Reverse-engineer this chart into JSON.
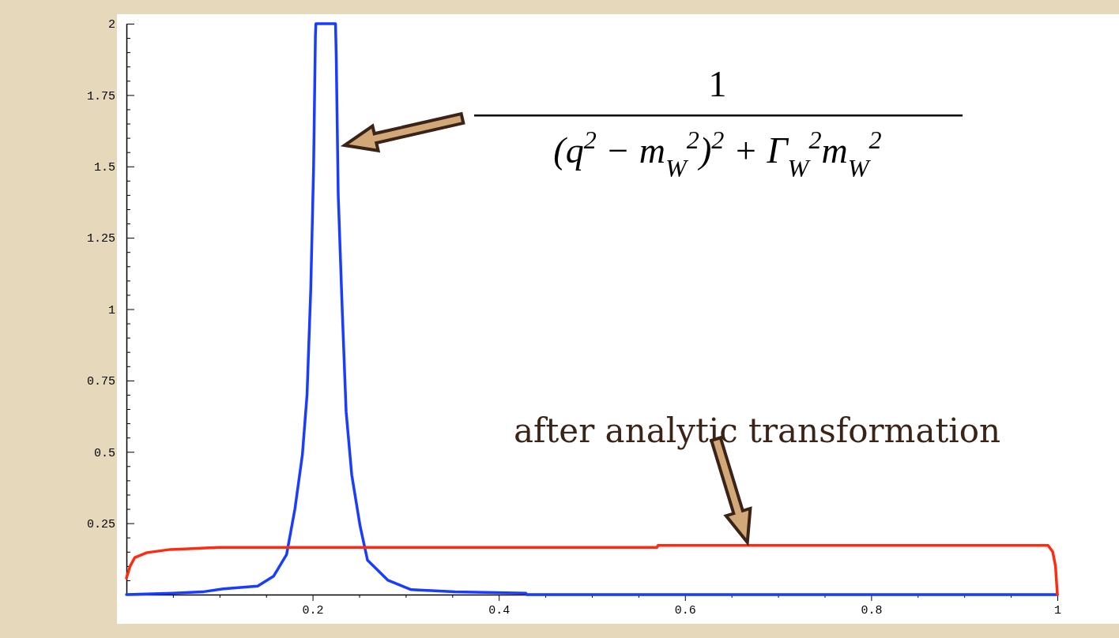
{
  "chart_data": {
    "type": "line",
    "xlim": [
      0,
      1
    ],
    "ylim": [
      0,
      2
    ],
    "xticks": [
      {
        "value": 0.05,
        "label": null
      },
      {
        "value": 0.1,
        "label": null
      },
      {
        "value": 0.15,
        "label": null
      },
      0.2,
      {
        "value": 0.25,
        "label": null
      },
      {
        "value": 0.3,
        "label": null
      },
      {
        "value": 0.35,
        "label": null
      },
      0.4,
      {
        "value": 0.45,
        "label": null
      },
      {
        "value": 0.5,
        "label": null
      },
      {
        "value": 0.55,
        "label": null
      },
      0.6,
      {
        "value": 0.65,
        "label": null
      },
      {
        "value": 0.7,
        "label": null
      },
      {
        "value": 0.75,
        "label": null
      },
      0.8,
      {
        "value": 0.85,
        "label": null
      },
      {
        "value": 0.9,
        "label": null
      },
      {
        "value": 0.95,
        "label": null
      },
      1
    ],
    "yticks": [
      {
        "value": 0.05,
        "label": null
      },
      {
        "value": 0.1,
        "label": null
      },
      {
        "value": 0.15,
        "label": null
      },
      {
        "value": 0.2,
        "label": null
      },
      0.25,
      {
        "value": 0.3,
        "label": null
      },
      {
        "value": 0.35,
        "label": null
      },
      {
        "value": 0.4,
        "label": null
      },
      {
        "value": 0.45,
        "label": null
      },
      0.5,
      {
        "value": 0.55,
        "label": null
      },
      {
        "value": 0.6,
        "label": null
      },
      {
        "value": 0.65,
        "label": null
      },
      {
        "value": 0.7,
        "label": null
      },
      0.75,
      {
        "value": 0.8,
        "label": null
      },
      {
        "value": 0.85,
        "label": null
      },
      {
        "value": 0.9,
        "label": null
      },
      {
        "value": 0.95,
        "label": null
      },
      1,
      {
        "value": 1.05,
        "label": null
      },
      {
        "value": 1.1,
        "label": null
      },
      {
        "value": 1.15,
        "label": null
      },
      {
        "value": 1.2,
        "label": null
      },
      1.25,
      {
        "value": 1.3,
        "label": null
      },
      {
        "value": 1.35,
        "label": null
      },
      {
        "value": 1.4,
        "label": null
      },
      {
        "value": 1.45,
        "label": null
      },
      1.5,
      {
        "value": 1.55,
        "label": null
      },
      {
        "value": 1.6,
        "label": null
      },
      {
        "value": 1.65,
        "label": null
      },
      {
        "value": 1.7,
        "label": null
      },
      1.75,
      {
        "value": 1.8,
        "label": null
      },
      {
        "value": 1.85,
        "label": null
      },
      {
        "value": 1.9,
        "label": null
      },
      {
        "value": 1.95,
        "label": null
      },
      2
    ],
    "grid": false,
    "line_style": "solid",
    "marker": "none",
    "series": [
      {
        "color": "#1a3cff",
        "x": [
          0,
          0.05,
          0.083,
          0.104,
          0.141,
          0.158,
          0.172,
          0.181,
          0.189,
          0.194,
          0.198,
          0.201,
          0.203,
          0.2035,
          0.2246,
          0.2254,
          0.2275,
          0.232,
          0.236,
          0.242,
          0.251,
          0.259,
          0.281,
          0.306,
          0.353,
          0.429,
          0.43,
          1
        ],
        "values": [
          0,
          0.005,
          0.01,
          0.02,
          0.03,
          0.064,
          0.14,
          0.3,
          0.49,
          0.7,
          1.07,
          1.49,
          1.96,
          2,
          2,
          1.88,
          1.4,
          0.98,
          0.64,
          0.42,
          0.24,
          0.12,
          0.05,
          0.017,
          0.01,
          0.005,
          0,
          0
        ]
      },
      {
        "color": "#ff2a10",
        "x": [
          0,
          0.004,
          0.009,
          0.022,
          0.047,
          0.1,
          0.57,
          0.571,
          0.99,
          0.995,
          0.998,
          1
        ],
        "values": [
          0.058,
          0.1,
          0.13,
          0.147,
          0.158,
          0.165,
          0.165,
          0.172,
          0.172,
          0.15,
          0.1,
          0
        ]
      }
    ],
    "annotations": [
      "1",
      "(q$^{2}$ − m$_{W}$$^{2}$)$^{2}$ + Γ$_{W}$$^{2}$m$_{W}$$^{2}$",
      {
        "text": "after analytic transformation",
        "x": 0.667,
        "y": 0.172
      }
    ]
  }
}
